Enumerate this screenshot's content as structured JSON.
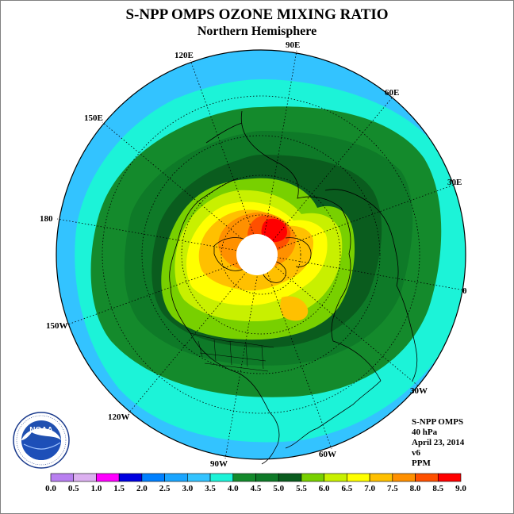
{
  "header": {
    "title": "S-NPP OMPS OZONE MIXING RATIO",
    "subtitle": "Northern Hemisphere"
  },
  "map": {
    "projection": "polar-stereographic-north",
    "longitude_labels": [
      "90E",
      "60E",
      "30E",
      "0",
      "30W",
      "60W",
      "90W",
      "120W",
      "150W",
      "180",
      "150E",
      "120E"
    ],
    "polar_night_mask_color": "#ffffff"
  },
  "info": {
    "product": "S-NPP OMPS",
    "level": "40 hPa",
    "date": "April 23, 2014",
    "version": "v6",
    "units": "PPM"
  },
  "colorbar": {
    "ticks": [
      "0.0",
      "0.5",
      "1.0",
      "1.5",
      "2.0",
      "2.5",
      "3.0",
      "3.5",
      "4.0",
      "4.5",
      "5.0",
      "5.5",
      "6.0",
      "6.5",
      "7.0",
      "7.5",
      "8.0",
      "8.5",
      "9.0"
    ],
    "colors": [
      "#b87ff0",
      "#dcb0f0",
      "#ff00ff",
      "#0000e0",
      "#0080ff",
      "#1aa5ff",
      "#33c3ff",
      "#1cf3d8",
      "#148a2c",
      "#0e7a28",
      "#0a5c1e",
      "#78d000",
      "#c8f000",
      "#ffff00",
      "#ffc000",
      "#ff9000",
      "#ff5000",
      "#ff0000",
      "#8b4a2a"
    ]
  },
  "logo": {
    "text": "NOAA",
    "ring_text": "NATIONAL OCEANIC AND ATMOSPHERIC ADMINISTRATION · U.S. DEPARTMENT OF COMMERCE"
  }
}
